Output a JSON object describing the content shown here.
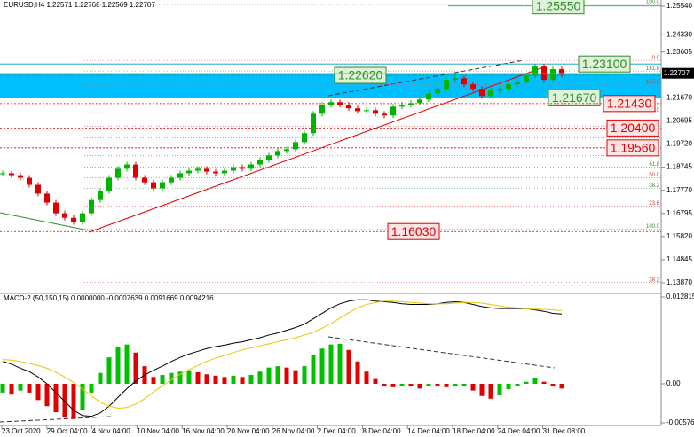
{
  "chart_data": [
    {
      "type": "candlestick",
      "title": "EURUSD,H4  1.22571 1.22768 1.22569 1.22707",
      "values": [
        1.1849,
        1.1841,
        1.183,
        1.18,
        1.1763,
        1.1725,
        1.168,
        1.1661,
        1.1643,
        1.168,
        1.1736,
        1.1774,
        1.183,
        1.1868,
        1.1886,
        1.183,
        1.1811,
        1.1785,
        1.1811,
        1.183,
        1.1849,
        1.186,
        1.1868,
        1.1856,
        1.1849,
        1.186,
        1.1875,
        1.1868,
        1.1886,
        1.1905,
        1.1924,
        1.1943,
        1.195,
        1.198,
        1.2018,
        1.21,
        1.2138,
        1.2149,
        1.2138,
        1.2123,
        1.2111,
        1.2115,
        1.21,
        1.2093,
        1.213,
        1.2138,
        1.2145,
        1.216,
        1.2186,
        1.2205,
        1.2243,
        1.225,
        1.2224,
        1.2205,
        1.2175,
        1.2198,
        1.2205,
        1.2224,
        1.2235,
        1.2261,
        1.2299,
        1.2243,
        1.2288,
        1.2265
      ],
      "color_up": "#00b400",
      "color_down": "#e00000",
      "ylim": [
        1.1342,
        1.258
      ],
      "yticks": [
        {
          "value": 1.2554,
          "label": "1.25540"
        },
        {
          "value": 1.2433,
          "label": "1.24330"
        },
        {
          "value": 1.23605,
          "label": "1.23605"
        },
        {
          "value": 1.2167,
          "label": "1.21670"
        },
        {
          "value": 1.20695,
          "label": "1.20695"
        },
        {
          "value": 1.1972,
          "label": "1.19720"
        },
        {
          "value": 1.18745,
          "label": "1.18745"
        },
        {
          "value": 1.1777,
          "label": "1.17770"
        },
        {
          "value": 1.16795,
          "label": "1.16795"
        },
        {
          "value": 1.1582,
          "label": "1.15820"
        },
        {
          "value": 1.14845,
          "label": "1.14845"
        },
        {
          "value": 1.1387,
          "label": "1.13870"
        }
      ],
      "last_price": 1.22707,
      "last_price_label": "1.22707",
      "x_labels": [
        "23 Oct 2020",
        "29 Oct 04:00",
        "4 Nov 04:00",
        "10 Nov 04:00",
        "16 Nov 04:00",
        "20 Nov 04:00",
        "26 Nov 04:00",
        "2 Dec 04:00",
        "8 Dec 04:00",
        "14 Dec 04:00",
        "18 Dec 04:00",
        "24 Dec 04:00",
        "31 Dec 08:00"
      ],
      "price_levels": {
        "values": [
          1.2555,
          1.231,
          1.2262,
          1.2167,
          1.2143,
          1.204,
          1.1956,
          1.1603
        ],
        "value_labels": [
          "1.25550",
          "1.23100",
          "1.22620",
          "1.21670",
          "1.21430",
          "1.20400",
          "1.19560",
          "1.16030"
        ],
        "colors": [
          "#2e8b2e",
          "#2e8b2e",
          "#2e8b2e",
          "#2e8b2e",
          "#e00000",
          "#e00000",
          "#e00000",
          "#e00000"
        ]
      },
      "fib_labels": [
        "100.0",
        "0.0",
        "161.8",
        "127.2",
        "76.0",
        "61.8",
        "50.0",
        "38.2",
        "61.8",
        "50.0",
        "38.2",
        "23.6",
        "100.0",
        "38.2"
      ],
      "fib_prices": [
        1.2561,
        1.2325,
        1.228,
        1.2224,
        1.2104,
        1.2048,
        1.1999,
        1.1924,
        1.1875,
        1.183,
        1.1785,
        1.171,
        1.1613,
        1.1388
      ]
    },
    {
      "type": "macd",
      "title": "MACD-2 (50,150,15) 0.0000000 -0.0007639 0.0091669 0.0094216",
      "values": [
        -0.0013,
        -0.0016,
        -0.001,
        -0.0013,
        -0.0024,
        -0.0033,
        -0.0042,
        -0.005,
        -0.0052,
        -0.0039,
        -0.0013,
        0.0016,
        0.0039,
        0.0055,
        0.0058,
        0.0046,
        0.0026,
        0.001,
        0.0013,
        0.0016,
        0.0018,
        0.002,
        0.0017,
        0.0014,
        0.0012,
        0.001,
        0.0012,
        0.001,
        0.0013,
        0.0018,
        0.0024,
        0.0026,
        0.0024,
        0.002,
        0.0026,
        0.0042,
        0.0052,
        0.0058,
        0.0059,
        0.005,
        0.0033,
        0.0018,
        0.0007,
        -0.0004,
        -0.0005,
        -0.0003,
        -0.0004,
        -0.0007,
        -0.0003,
        -0.0004,
        -0.0005,
        -0.0004,
        -0.0003,
        -0.001,
        -0.0018,
        -0.0022,
        -0.0017,
        -0.0008,
        -0.0003,
        0.0003,
        0.0008,
        0.0003,
        -0.0004,
        -0.0007
      ],
      "macd_line": [
        0.0033,
        0.0029,
        0.0023,
        0.0018,
        0.001,
        0,
        -0.0013,
        -0.0026,
        -0.0039,
        -0.0047,
        -0.0048,
        -0.0043,
        -0.0033,
        -0.002,
        -0.0007,
        0.0004,
        0.0013,
        0.002,
        0.0026,
        0.0033,
        0.0039,
        0.0044,
        0.0048,
        0.0052,
        0.0055,
        0.0057,
        0.006,
        0.0062,
        0.0065,
        0.0068,
        0.0072,
        0.0075,
        0.0079,
        0.0083,
        0.0088,
        0.0096,
        0.0104,
        0.0112,
        0.0118,
        0.0122,
        0.0124,
        0.0124,
        0.0122,
        0.0121,
        0.012,
        0.0118,
        0.0117,
        0.0117,
        0.0117,
        0.0118,
        0.012,
        0.0121,
        0.012,
        0.0117,
        0.0114,
        0.0112,
        0.0111,
        0.0111,
        0.0111,
        0.0111,
        0.0109,
        0.0107,
        0.0104,
        0.0103
      ],
      "signal_line": [
        0.0036,
        0.0035,
        0.0033,
        0.003,
        0.0027,
        0.0023,
        0.0017,
        0.001,
        0.0002,
        -0.0008,
        -0.0018,
        -0.0027,
        -0.0033,
        -0.0036,
        -0.0035,
        -0.003,
        -0.0022,
        -0.0012,
        -0.0003,
        0.0006,
        0.0014,
        0.0021,
        0.0027,
        0.0033,
        0.0038,
        0.0042,
        0.0046,
        0.005,
        0.0053,
        0.0056,
        0.0059,
        0.0062,
        0.0065,
        0.0068,
        0.0072,
        0.0076,
        0.0082,
        0.0089,
        0.0097,
        0.0105,
        0.0112,
        0.0117,
        0.012,
        0.0122,
        0.0122,
        0.0121,
        0.012,
        0.0119,
        0.0118,
        0.0118,
        0.0118,
        0.0119,
        0.012,
        0.012,
        0.0119,
        0.0117,
        0.0115,
        0.0113,
        0.0112,
        0.0111,
        0.011,
        0.011,
        0.0109,
        0.0108
      ],
      "color_up": "#00c000",
      "color_down": "#e00000",
      "macd_color": "#000000",
      "signal_color": "#e8c800",
      "ylim": [
        -0.00615,
        0.01308
      ],
      "yticks": [
        0.0128152,
        {
          "value": 0,
          "label": "0.00"
        },
        -0.0057625
      ]
    }
  ]
}
